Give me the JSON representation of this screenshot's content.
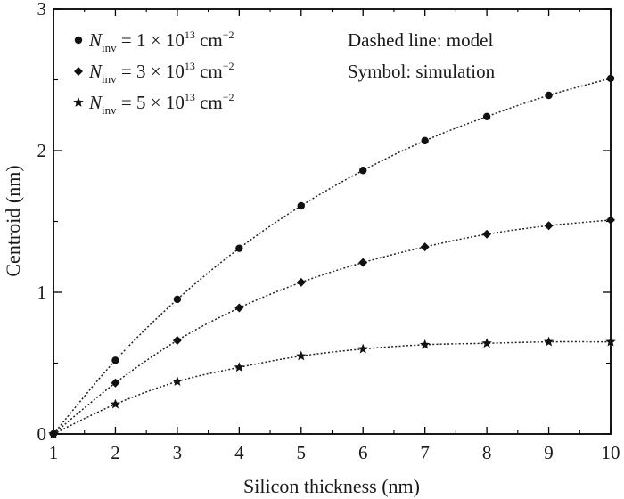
{
  "chart_data": {
    "type": "line",
    "xlabel": "Silicon thickness (nm)",
    "ylabel": "Centroid (nm)",
    "xlim": [
      1,
      10
    ],
    "ylim": [
      0,
      3
    ],
    "x_ticks": [
      "1",
      "2",
      "3",
      "4",
      "5",
      "6",
      "7",
      "8",
      "9",
      "10"
    ],
    "y_ticks": [
      "0",
      "1",
      "2",
      "3"
    ],
    "grid": false,
    "legend_position": "top-left",
    "x": [
      1,
      2,
      3,
      4,
      5,
      6,
      7,
      8,
      9,
      10
    ],
    "series": [
      {
        "name_prefix": "N",
        "name_subscript": "inv",
        "name_value": " = 1 × 10",
        "name_exponent": "13",
        "name_unit": " cm",
        "name_unit_exponent": "−2",
        "marker": "circle",
        "values": [
          0,
          0.52,
          0.95,
          1.31,
          1.61,
          1.86,
          2.07,
          2.24,
          2.39,
          2.51
        ]
      },
      {
        "name_prefix": "N",
        "name_subscript": "inv",
        "name_value": " = 3 × 10",
        "name_exponent": "13",
        "name_unit": " cm",
        "name_unit_exponent": "−2",
        "marker": "diamond",
        "values": [
          0,
          0.36,
          0.66,
          0.89,
          1.07,
          1.21,
          1.32,
          1.41,
          1.47,
          1.51
        ]
      },
      {
        "name_prefix": "N",
        "name_subscript": "inv",
        "name_value": " = 5 × 10",
        "name_exponent": "13",
        "name_unit": " cm",
        "name_unit_exponent": "−2",
        "marker": "star",
        "values": [
          0,
          0.21,
          0.37,
          0.47,
          0.55,
          0.6,
          0.63,
          0.64,
          0.65,
          0.65
        ]
      }
    ],
    "annotations": [
      "Dashed line: model",
      "Symbol: simulation"
    ]
  }
}
